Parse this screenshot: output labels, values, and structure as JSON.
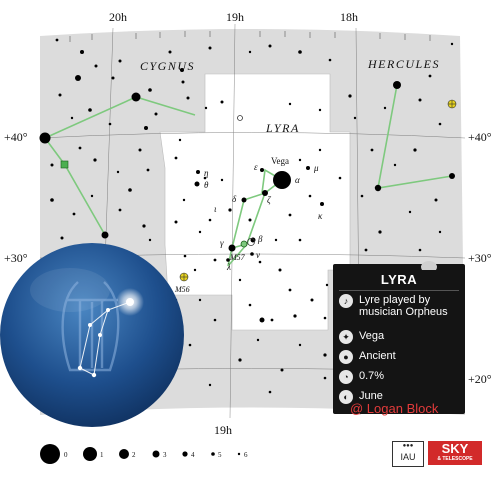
{
  "map": {
    "ra_labels": [
      "20h",
      "19h",
      "18h",
      "19h"
    ],
    "dec_labels_left": [
      "+40°",
      "+30°"
    ],
    "dec_labels_right": [
      "+40°",
      "+30°",
      "+20°"
    ],
    "constellation_labels": [
      "CYGNUS",
      "HERCULES",
      "LYRA"
    ],
    "star_labels": {
      "vega": "Vega",
      "alpha": "α",
      "epsilon": "ε",
      "mu": "μ",
      "eta": "η",
      "theta": "θ",
      "delta": "δ",
      "zeta": "ζ",
      "iota": "ι",
      "kappa": "κ",
      "gamma": "γ",
      "beta": "β",
      "lambda": "λ",
      "nu": "ν"
    },
    "deep_sky_labels": [
      "M56",
      "M57"
    ],
    "colors": {
      "figure_lines": "#7ec97e",
      "region": "#dcdcdc",
      "region_highlight": "#ffffff",
      "cluster": "#e6d21f"
    }
  },
  "infobox": {
    "title": "LYRA",
    "rows": [
      {
        "icon": "lyre-icon",
        "text": "Lyre played by musician Orpheus"
      },
      {
        "icon": "star-icon",
        "text": "Vega"
      },
      {
        "icon": "origin-icon",
        "text": "Ancient"
      },
      {
        "icon": "area-icon",
        "text": "0.7%"
      },
      {
        "icon": "month-icon",
        "text": "June"
      }
    ]
  },
  "legend": {
    "magnitudes": [
      "0",
      "1",
      "2",
      "3",
      "4",
      "5",
      "6"
    ]
  },
  "credits": {
    "copyright": "@ Logan Block",
    "iau_text": "IAU",
    "sky_big": "SKY",
    "sky_small": "& TELESCOPE"
  }
}
